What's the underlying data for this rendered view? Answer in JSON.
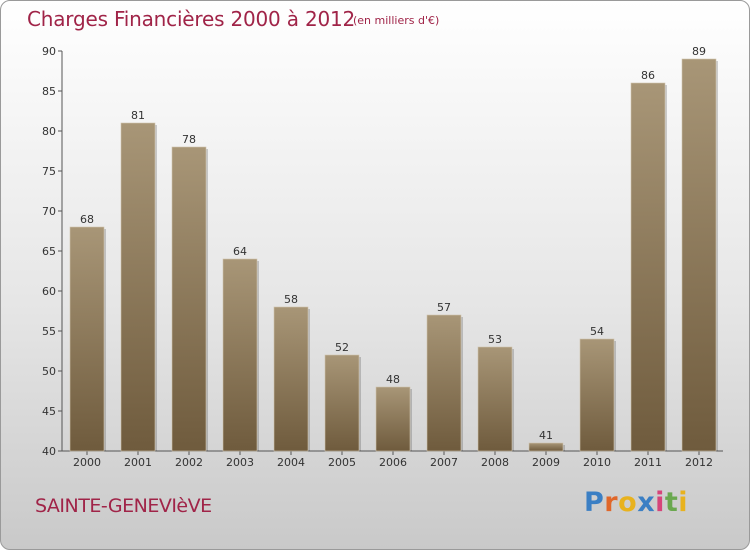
{
  "title": "Charges Financières 2000 à 2012",
  "subtitle": "(en milliers d'€)",
  "city": "SAINTE-GENEVIèVE",
  "brand": {
    "letters": [
      "P",
      "r",
      "o",
      "x",
      "i",
      "t",
      "i"
    ],
    "colors": [
      "#3b7fc4",
      "#e0672a",
      "#e8b21e",
      "#3b7fc4",
      "#d6457a",
      "#6aa84f",
      "#e8b21e"
    ]
  },
  "colors": {
    "title": "#a02448",
    "bar_top": "#a89677",
    "bar_bottom": "#6f5b3d",
    "axis": "#555555",
    "grid": "#d0d0d0"
  },
  "chart_data": {
    "type": "bar",
    "title": "Charges Financières 2000 à 2012",
    "subtitle": "(en milliers d'€)",
    "xlabel": "",
    "ylabel": "",
    "categories": [
      "2000",
      "2001",
      "2002",
      "2003",
      "2004",
      "2005",
      "2006",
      "2007",
      "2008",
      "2009",
      "2010",
      "2011",
      "2012"
    ],
    "values": [
      68,
      81,
      78,
      64,
      58,
      52,
      48,
      57,
      53,
      41,
      54,
      86,
      89
    ],
    "ylim": [
      40,
      90
    ],
    "yticks": [
      40,
      45,
      50,
      55,
      60,
      65,
      70,
      75,
      80,
      85,
      90
    ],
    "grid": false,
    "data_labels": true
  }
}
